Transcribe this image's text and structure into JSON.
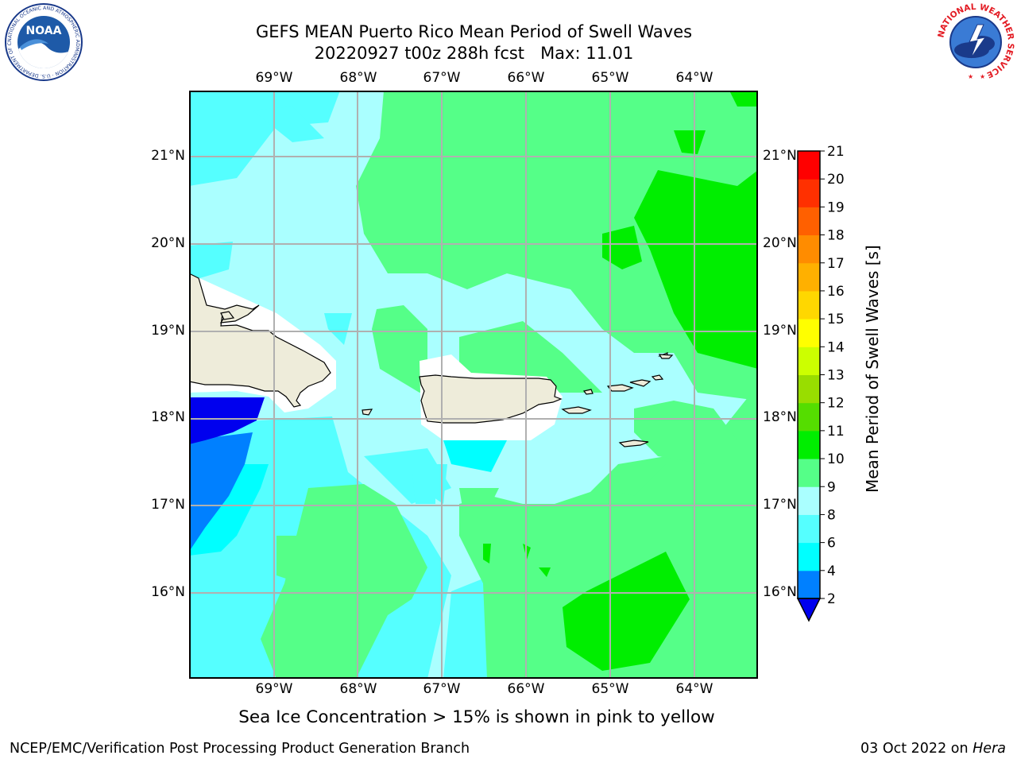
{
  "header": {
    "title_line1": "GEFS MEAN Puerto Rico Mean Period of Swell Waves",
    "title_line2": "20220927 t00z 288h fcst   Max: 11.01"
  },
  "map": {
    "lon_labels": [
      "69°W",
      "68°W",
      "67°W",
      "66°W",
      "65°W",
      "64°W"
    ],
    "lat_labels": [
      "21°N",
      "20°N",
      "19°N",
      "18°N",
      "17°N",
      "16°N"
    ],
    "land_color": "#eeecda",
    "gridline_color": "#b0b0b0"
  },
  "colorbar": {
    "title": "Mean Period of Swell Waves [s]",
    "levels": [
      "2",
      "4",
      "6",
      "8",
      "9",
      "10",
      "11",
      "12",
      "13",
      "14",
      "15",
      "16",
      "17",
      "18",
      "19",
      "20",
      "21"
    ],
    "colors": [
      "#0000ee",
      "#0080ff",
      "#00ffff",
      "#55ffff",
      "#aaffff",
      "#55ff88",
      "#00ee00",
      "#55dd00",
      "#99dd00",
      "#ccff00",
      "#ffff00",
      "#ffd700",
      "#ffb000",
      "#ff8c00",
      "#ff6000",
      "#ff3000",
      "#ff0000"
    ],
    "extend": "min"
  },
  "note": "Sea Ice Concentration > 15% is shown in pink to yellow",
  "footer": {
    "left": "NCEP/EMC/Verification Post Processing Product Generation Branch",
    "date": "03 Oct 2022 on ",
    "machine": "Hera"
  },
  "logos": {
    "noaa_text": "NOAA",
    "noaa_ring": "NATIONAL OCEANIC AND ATMOSPHERIC ADMINISTRATION · U.S. DEPARTMENT OF COMMERCE",
    "nws_ring": "NATIONAL WEATHER SERVICE"
  }
}
